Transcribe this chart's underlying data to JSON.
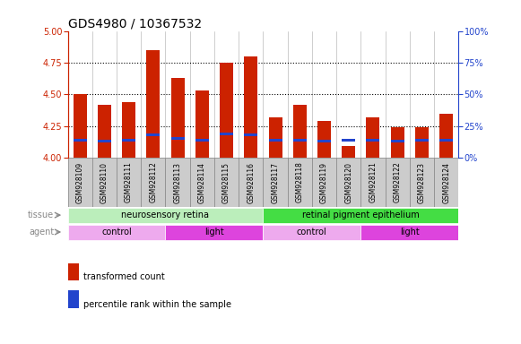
{
  "title": "GDS4980 / 10367532",
  "samples": [
    "GSM928109",
    "GSM928110",
    "GSM928111",
    "GSM928112",
    "GSM928113",
    "GSM928114",
    "GSM928115",
    "GSM928116",
    "GSM928117",
    "GSM928118",
    "GSM928119",
    "GSM928120",
    "GSM928121",
    "GSM928122",
    "GSM928123",
    "GSM928124"
  ],
  "transformed_count": [
    4.5,
    4.42,
    4.44,
    4.85,
    4.63,
    4.53,
    4.75,
    4.8,
    4.32,
    4.42,
    4.29,
    4.09,
    4.32,
    4.24,
    4.24,
    4.35
  ],
  "percentile_rank": [
    14,
    13,
    14,
    18,
    15,
    14,
    19,
    18,
    14,
    14,
    13,
    14,
    14,
    13,
    14,
    14
  ],
  "ylim_left": [
    4.0,
    5.0
  ],
  "ylim_right": [
    0,
    100
  ],
  "yticks_left": [
    4.0,
    4.25,
    4.5,
    4.75,
    5.0
  ],
  "yticks_right": [
    0,
    25,
    50,
    75,
    100
  ],
  "grid_values": [
    4.25,
    4.5,
    4.75
  ],
  "bar_color": "#cc2200",
  "percentile_color": "#2244cc",
  "background_color": "#ffffff",
  "xticklabel_bg": "#cccccc",
  "tissue_groups": [
    {
      "label": "neurosensory retina",
      "start": 0,
      "end": 8,
      "color": "#bbeebb"
    },
    {
      "label": "retinal pigment epithelium",
      "start": 8,
      "end": 16,
      "color": "#44dd44"
    }
  ],
  "agent_groups": [
    {
      "label": "control",
      "start": 0,
      "end": 4,
      "color": "#eeaaee"
    },
    {
      "label": "light",
      "start": 4,
      "end": 8,
      "color": "#dd44dd"
    },
    {
      "label": "control",
      "start": 8,
      "end": 12,
      "color": "#eeaaee"
    },
    {
      "label": "light",
      "start": 12,
      "end": 16,
      "color": "#dd44dd"
    }
  ],
  "legend_items": [
    {
      "label": "transformed count",
      "color": "#cc2200"
    },
    {
      "label": "percentile rank within the sample",
      "color": "#2244cc"
    }
  ],
  "left_axis_color": "#cc2200",
  "right_axis_color": "#2244cc",
  "label_color": "#888888",
  "title_fontsize": 10,
  "tick_fontsize": 7,
  "bar_width": 0.55
}
